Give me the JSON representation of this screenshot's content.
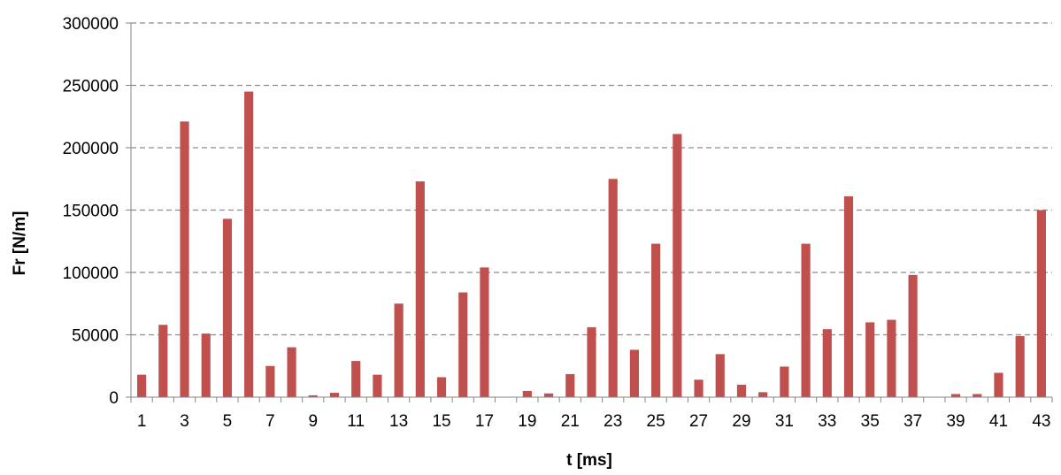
{
  "chart_data": {
    "type": "bar",
    "title": "",
    "xlabel": "t [ms]",
    "ylabel": "Fr [N/m]",
    "ylim": [
      0,
      300000
    ],
    "y_ticks": [
      0,
      50000,
      100000,
      150000,
      200000,
      250000,
      300000
    ],
    "grid": true,
    "bar_color": "#c0504d",
    "categories": [
      1,
      2,
      3,
      4,
      5,
      6,
      7,
      8,
      9,
      10,
      11,
      12,
      13,
      14,
      15,
      16,
      17,
      18,
      19,
      20,
      21,
      22,
      23,
      24,
      25,
      26,
      27,
      28,
      29,
      30,
      31,
      32,
      33,
      34,
      35,
      36,
      37,
      38,
      39,
      40,
      41,
      42,
      43
    ],
    "x_tick_labels": [
      "1",
      "3",
      "5",
      "7",
      "9",
      "11",
      "13",
      "15",
      "17",
      "19",
      "21",
      "23",
      "25",
      "27",
      "29",
      "31",
      "33",
      "35",
      "37",
      "39",
      "41",
      "43"
    ],
    "values": [
      18000,
      58000,
      221000,
      51000,
      143000,
      245000,
      25000,
      40000,
      1500,
      3500,
      29000,
      18000,
      75000,
      173000,
      16000,
      84000,
      104000,
      0,
      5000,
      3000,
      18500,
      56000,
      175000,
      38000,
      123000,
      211000,
      14000,
      34500,
      10000,
      4000,
      24500,
      123000,
      54500,
      161000,
      60000,
      62000,
      98000,
      0,
      2500,
      2500,
      19500,
      49000,
      150000
    ]
  }
}
